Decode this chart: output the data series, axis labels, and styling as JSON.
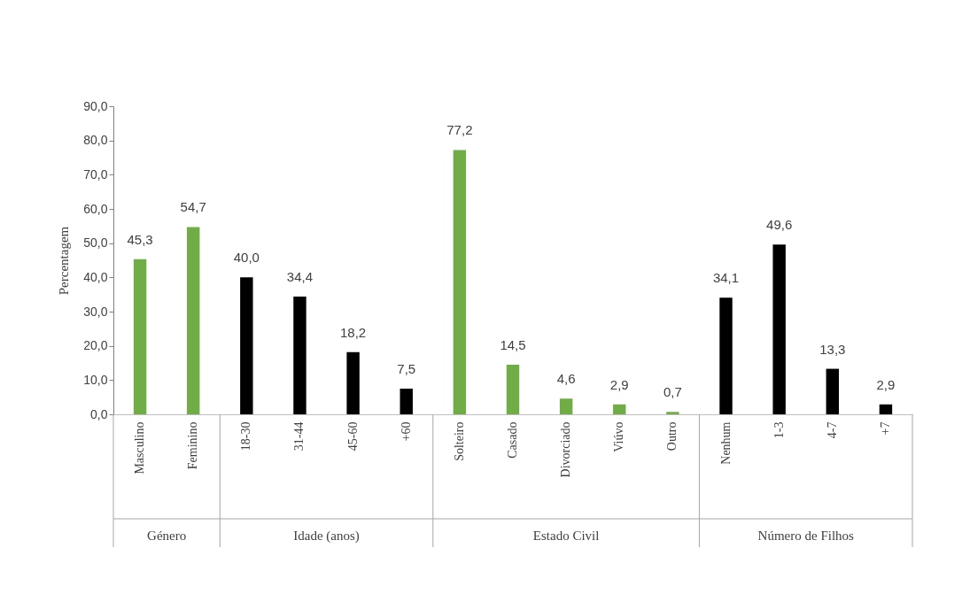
{
  "chart_data": {
    "type": "bar",
    "ylabel": "Percentagem",
    "categories": [
      "Masculino",
      "Feminino",
      "18-30",
      "31-44",
      "45-60",
      "+60",
      "Solteiro",
      "Casado",
      "Divorciado",
      "Viúvo",
      "Outro",
      "Nenhum",
      "1-3",
      "4-7",
      "+7"
    ],
    "values": [
      45.3,
      54.7,
      40.0,
      34.4,
      18.2,
      7.5,
      77.2,
      14.5,
      4.6,
      2.9,
      0.7,
      34.1,
      49.6,
      13.3,
      2.9
    ],
    "value_labels": [
      "45,3",
      "54,7",
      "40,0",
      "34,4",
      "18,2",
      "7,5",
      "77,2",
      "14,5",
      "4,6",
      "2,9",
      "0,7",
      "34,1",
      "49,6",
      "13,3",
      "2,9"
    ],
    "colors": [
      "#70ad47",
      "#70ad47",
      "#000000",
      "#000000",
      "#000000",
      "#000000",
      "#70ad47",
      "#70ad47",
      "#70ad47",
      "#70ad47",
      "#70ad47",
      "#000000",
      "#000000",
      "#000000",
      "#000000"
    ],
    "ylim": [
      0,
      90
    ],
    "yticks": [
      {
        "value": 0,
        "label": "0,0"
      },
      {
        "value": 10,
        "label": "10,0"
      },
      {
        "value": 20,
        "label": "20,0"
      },
      {
        "value": 30,
        "label": "30,0"
      },
      {
        "value": 40,
        "label": "40,0"
      },
      {
        "value": 50,
        "label": "50,0"
      },
      {
        "value": 60,
        "label": "60,0"
      },
      {
        "value": 70,
        "label": "70,0"
      },
      {
        "value": 80,
        "label": "80,0"
      },
      {
        "value": 90,
        "label": "90,0"
      }
    ],
    "annotations": [
      "Género",
      "Idade (anos)",
      "Estado Civil",
      "Número de Filhos"
    ],
    "grid": false
  }
}
